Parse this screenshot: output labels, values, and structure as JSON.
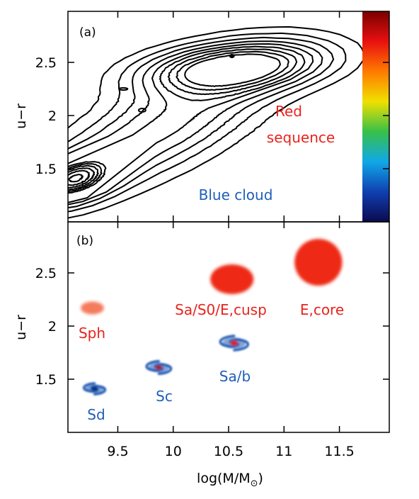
{
  "figure": {
    "xlabel": "log(M/M",
    "ylabel": "u−r",
    "xticks": [
      "9.5",
      "10",
      "10.5",
      "11",
      "11.5"
    ],
    "colors": {
      "red_text": "#e8231c",
      "blue_text": "#1f5eb8",
      "contour": "#000000",
      "blob_red": "#ee2a12",
      "blob_pink": "#f47b5d",
      "spiral_blue": "#1d58b0"
    }
  },
  "chart_data": [
    {
      "type": "contour",
      "panel": "(a)",
      "xlabel": "",
      "ylabel": "u−r",
      "xlim": [
        9.05,
        11.95
      ],
      "ylim": [
        1.0,
        2.98
      ],
      "yticks": [
        "1.5",
        "2",
        "2.5"
      ],
      "colorbar": {
        "orientation": "vertical",
        "colormap": "rainbow",
        "stops": [
          "#7a0000",
          "#e81010",
          "#ff7a00",
          "#f0e000",
          "#38c048",
          "#10a8e8",
          "#1040b0",
          "#0a0a50"
        ]
      },
      "annotations": [
        {
          "text_lines": [
            "Red",
            "sequence"
          ],
          "color": "red"
        },
        {
          "text_lines": [
            "Blue cloud"
          ],
          "color": "blue"
        }
      ],
      "peaks": [
        {
          "x": 10.53,
          "y": 2.56,
          "label": "red-sequence peak"
        },
        {
          "x": 9.1,
          "y": 1.4,
          "label": "blue-cloud peak"
        }
      ]
    },
    {
      "type": "scatter",
      "panel": "(b)",
      "xlabel": "log(M/M⊙)",
      "ylabel": "u−r",
      "xlim": [
        9.05,
        11.95
      ],
      "ylim": [
        1.0,
        2.98
      ],
      "xticks": [
        9.5,
        10,
        10.5,
        11,
        11.5
      ],
      "yticks": [
        1.5,
        2,
        2.5
      ],
      "series": [
        {
          "name": "Sph",
          "type": "ellipse",
          "x": 9.27,
          "y": 2.17,
          "width": 0.21,
          "height": 0.12,
          "color": "#f47b5d"
        },
        {
          "name": "Sa/S0/E,cusp",
          "type": "ellipse",
          "x": 10.53,
          "y": 2.44,
          "width": 0.39,
          "height": 0.28,
          "color": "#ee2a12"
        },
        {
          "name": "E,core",
          "type": "ellipse",
          "x": 11.31,
          "y": 2.6,
          "width": 0.43,
          "height": 0.44,
          "color": "#ee2a12"
        },
        {
          "name": "Sd",
          "type": "spiral",
          "x": 9.29,
          "y": 1.41,
          "size": 0.13,
          "color": "#1d58b0",
          "core": "#0e2f7a"
        },
        {
          "name": "Sc",
          "type": "spiral",
          "x": 9.87,
          "y": 1.61,
          "size": 0.15,
          "color": "#1d58b0",
          "core": "#b02020"
        },
        {
          "name": "Sa/b",
          "type": "spiral",
          "x": 10.55,
          "y": 1.84,
          "size": 0.17,
          "color": "#1d58b0",
          "core": "#d82a1c"
        }
      ],
      "labels": [
        {
          "text": "Sph",
          "color": "red"
        },
        {
          "text": "Sa/S0/E,cusp",
          "color": "red"
        },
        {
          "text": "E,core",
          "color": "red"
        },
        {
          "text": "Sd",
          "color": "blue"
        },
        {
          "text": "Sc",
          "color": "blue"
        },
        {
          "text": "Sa/b",
          "color": "blue"
        }
      ]
    }
  ]
}
